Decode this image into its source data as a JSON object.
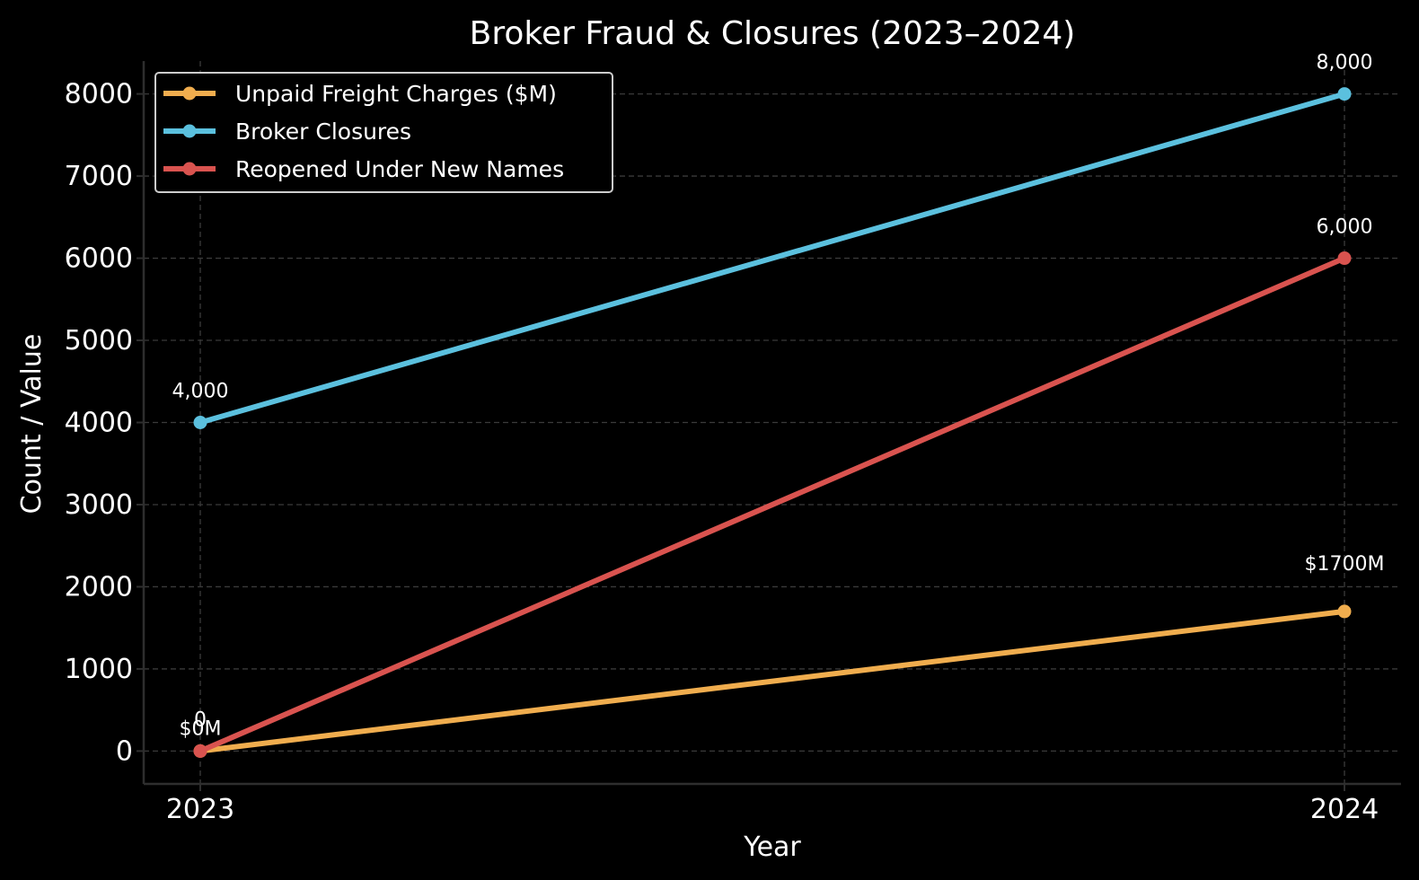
{
  "chart_data": {
    "type": "line",
    "title": "Broker Fraud & Closures (2023–2024)",
    "xlabel": "Year",
    "ylabel": "Count / Value",
    "x": [
      "2023",
      "2024"
    ],
    "ylim": [
      -400,
      8400
    ],
    "yticks": [
      0,
      1000,
      2000,
      3000,
      4000,
      5000,
      6000,
      7000,
      8000
    ],
    "grid": true,
    "legend_position": "top-left",
    "series": [
      {
        "name": "Unpaid Freight Charges ($M)",
        "values": [
          0,
          1700
        ],
        "color": "#f0ad4e",
        "data_labels": [
          "$0M",
          "$1700M"
        ]
      },
      {
        "name": "Broker Closures",
        "values": [
          4000,
          8000
        ],
        "color": "#5bc0de",
        "data_labels": [
          "4,000",
          "8,000"
        ]
      },
      {
        "name": "Reopened Under New Names",
        "values": [
          0,
          6000
        ],
        "color": "#d9534f",
        "data_labels": [
          "0",
          "6,000"
        ]
      }
    ]
  }
}
